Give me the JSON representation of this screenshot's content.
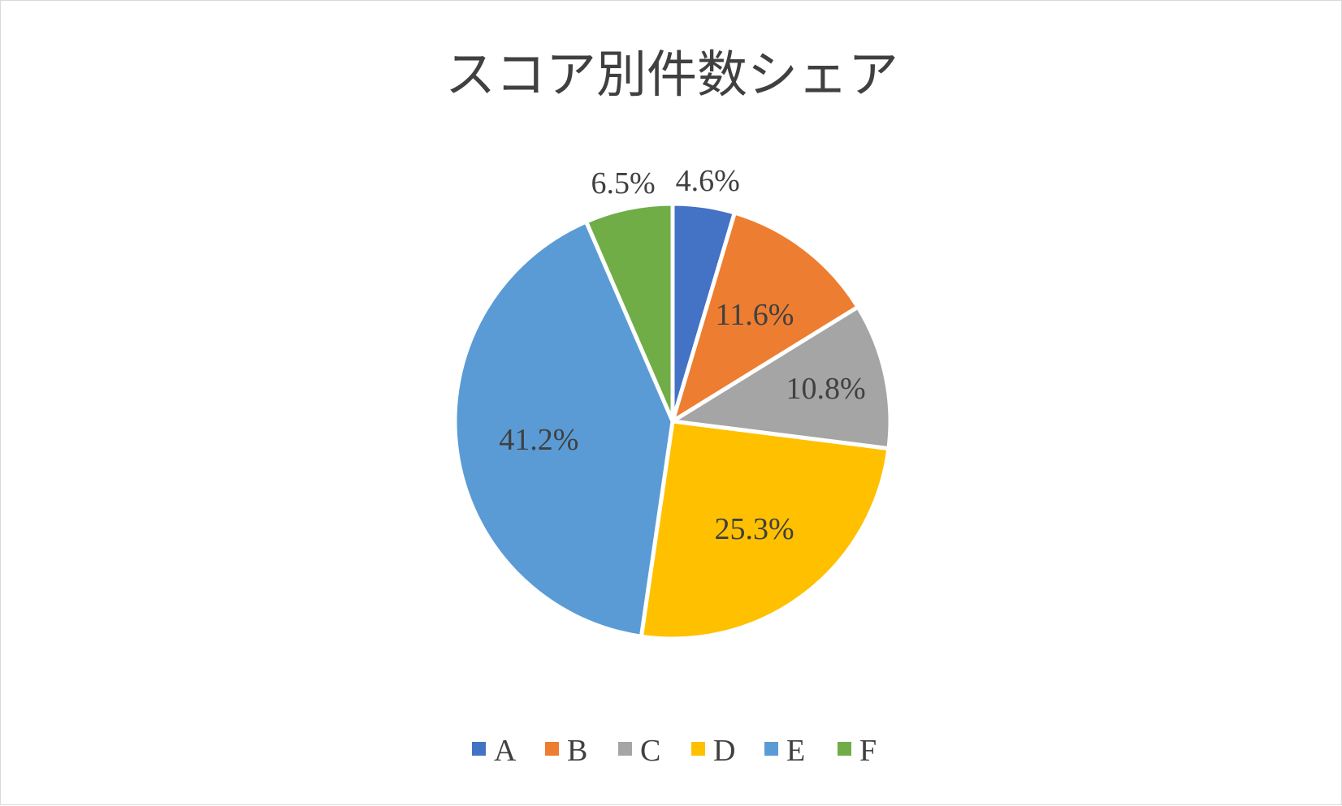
{
  "chart_data": {
    "type": "pie",
    "title": "スコア別件数シェア",
    "categories": [
      "A",
      "B",
      "C",
      "D",
      "E",
      "F"
    ],
    "values": [
      4.6,
      11.6,
      10.8,
      25.3,
      41.2,
      6.5
    ],
    "labels": [
      "4.6%",
      "11.6%",
      "10.8%",
      "25.3%",
      "41.2%",
      "6.5%"
    ],
    "colors": [
      "#4472C4",
      "#ED7D31",
      "#A5A5A5",
      "#FFC000",
      "#5B9BD5",
      "#70AD47"
    ],
    "start_angle": "12 o'clock, clockwise",
    "legend_position": "bottom"
  }
}
